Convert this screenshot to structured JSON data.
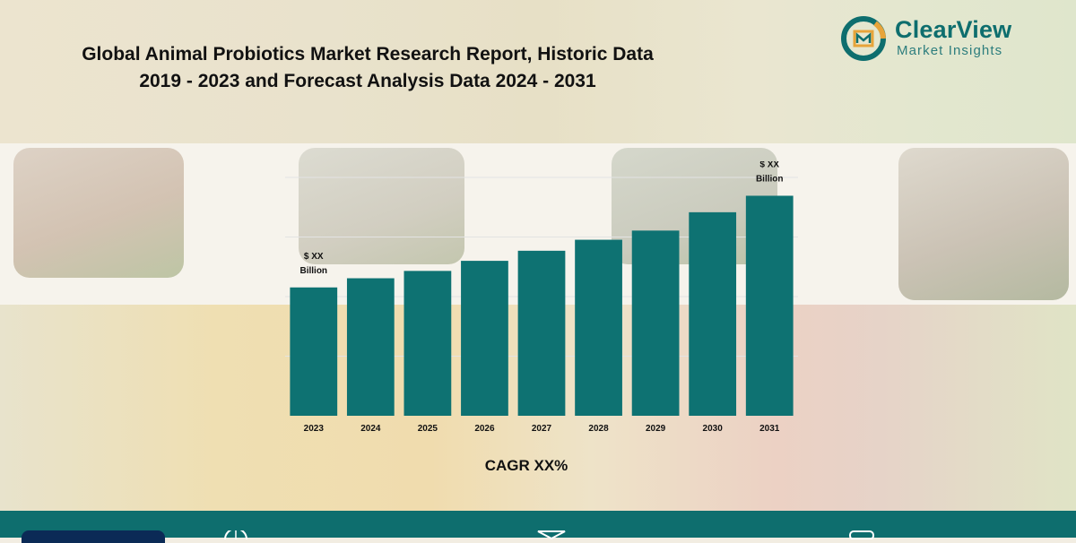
{
  "header": {
    "title_line1": "Global Animal Probiotics Market Research Report, Historic Data",
    "title_line2": "2019 - 2023 and Forecast Analysis Data 2024 - 2031"
  },
  "logo": {
    "name": "ClearView",
    "subtitle": "Market Insights"
  },
  "colors": {
    "bar": "#0e7272",
    "brand": "#0e6e6e",
    "footer_pill": "#0b2a56"
  },
  "chart_data": {
    "type": "bar",
    "categories": [
      "2023",
      "2024",
      "2025",
      "2026",
      "2027",
      "2028",
      "2029",
      "2030",
      "2031"
    ],
    "values": [
      140,
      150,
      158,
      169,
      180,
      192,
      202,
      222,
      240
    ],
    "ylim": [
      0,
      260
    ],
    "grid": true,
    "annotations": [
      {
        "category": "2023",
        "lines": [
          "$ XX",
          "Billion"
        ]
      },
      {
        "category": "2031",
        "lines": [
          "$ XX",
          "Billion"
        ]
      }
    ],
    "footnote": "CAGR XX%"
  },
  "icons": [
    "clearview-logo-icon",
    "globe-icon",
    "mail-icon",
    "phone-icon"
  ]
}
